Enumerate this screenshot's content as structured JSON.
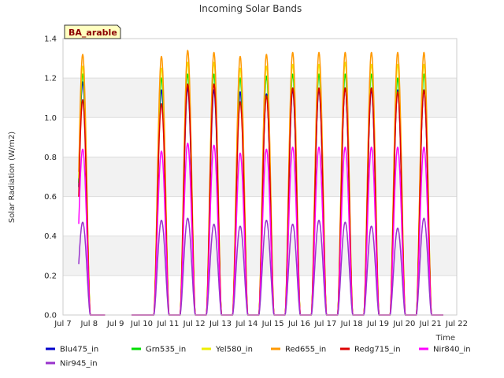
{
  "chart_data": {
    "type": "line",
    "title": "Incoming Solar Bands",
    "site_label": "BA_arable",
    "xlabel": "Time",
    "ylabel": "Solar Radiation (W/m2)",
    "xlim": [
      7,
      22
    ],
    "ylim": [
      0,
      1.4
    ],
    "x_ticks": [
      "Jul 7",
      "Jul 8",
      "Jul 9",
      "Jul 10",
      "Jul 11",
      "Jul 12",
      "Jul 13",
      "Jul 14",
      "Jul 15",
      "Jul 16",
      "Jul 17",
      "Jul 18",
      "Jul 19",
      "Jul 20",
      "Jul 21",
      "Jul 22"
    ],
    "y_ticks": [
      "0.0",
      "0.2",
      "0.4",
      "0.6",
      "0.8",
      "1.0",
      "1.2",
      "1.4"
    ],
    "grid": true,
    "legend_position": "bottom",
    "data_start": 7.6,
    "data_end": 21.5,
    "gap": [
      8.6,
      9.6
    ],
    "day_centers": [
      7.75,
      10.75,
      11.75,
      12.75,
      13.75,
      14.75,
      15.75,
      16.75,
      17.75,
      18.75,
      19.75,
      20.75
    ],
    "series": [
      {
        "name": "Blu475_in",
        "color": "#0000cc",
        "peaks": [
          1.18,
          1.14,
          1.15,
          1.14,
          1.13,
          1.12,
          1.14,
          1.14,
          1.15,
          1.14,
          1.14,
          1.14
        ]
      },
      {
        "name": "Grn535_in",
        "color": "#00dd00",
        "peaks": [
          1.22,
          1.2,
          1.22,
          1.22,
          1.2,
          1.21,
          1.22,
          1.22,
          1.22,
          1.22,
          1.2,
          1.22
        ]
      },
      {
        "name": "Yel580_in",
        "color": "#eeee00",
        "peaks": [
          1.26,
          1.25,
          1.28,
          1.28,
          1.25,
          1.26,
          1.27,
          1.27,
          1.28,
          1.27,
          1.27,
          1.27
        ]
      },
      {
        "name": "Red655_in",
        "color": "#ff9900",
        "peaks": [
          1.32,
          1.31,
          1.34,
          1.33,
          1.31,
          1.32,
          1.33,
          1.33,
          1.33,
          1.33,
          1.33,
          1.33
        ]
      },
      {
        "name": "Redg715_in",
        "color": "#dd0000",
        "peaks": [
          1.09,
          1.07,
          1.17,
          1.17,
          1.08,
          1.11,
          1.15,
          1.15,
          1.15,
          1.15,
          1.13,
          1.14
        ]
      },
      {
        "name": "Nir840_in",
        "color": "#ff00ff",
        "peaks": [
          0.84,
          0.83,
          0.87,
          0.86,
          0.82,
          0.84,
          0.85,
          0.85,
          0.85,
          0.85,
          0.85,
          0.85
        ]
      },
      {
        "name": "Nir945_in",
        "color": "#9933cc",
        "peaks": [
          0.47,
          0.48,
          0.49,
          0.46,
          0.45,
          0.48,
          0.46,
          0.48,
          0.47,
          0.45,
          0.44,
          0.49
        ]
      }
    ]
  }
}
